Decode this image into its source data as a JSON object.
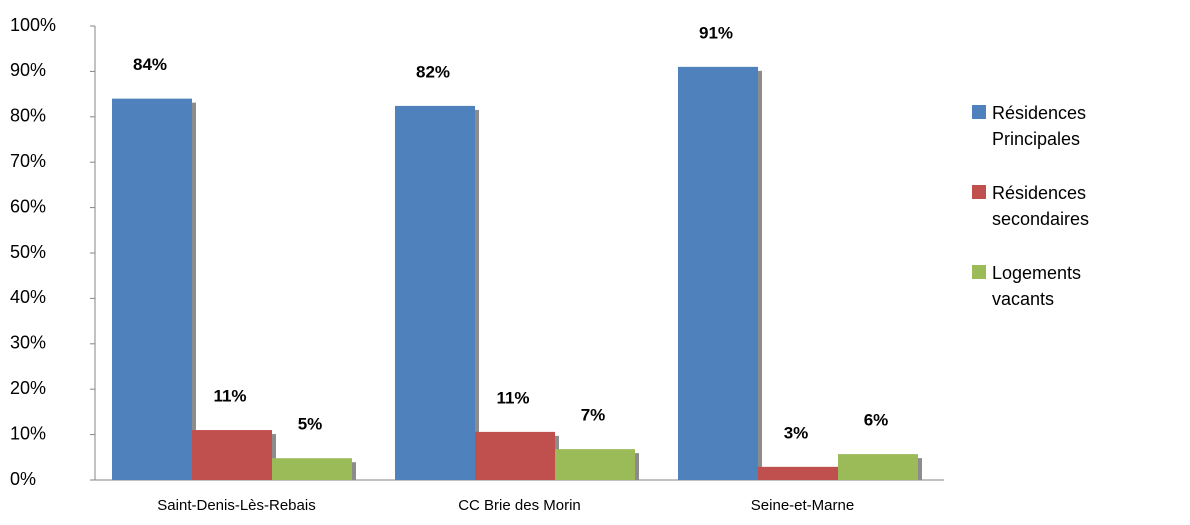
{
  "chart_data": {
    "type": "bar",
    "categories": [
      "Saint-Denis-Lès-Rebais",
      "CC Brie des Morin",
      "Seine-et-Marne"
    ],
    "series": [
      {
        "name": "Résidences Principales",
        "color": "#4f81bd",
        "values": [
          84,
          82.4,
          91
        ],
        "value_labels": [
          "84%",
          "82%",
          "91%"
        ]
      },
      {
        "name": "Résidences secondaires",
        "color": "#c0504d",
        "values": [
          11,
          10.6,
          2.9
        ],
        "value_labels": [
          "11%",
          "11%",
          "3%"
        ]
      },
      {
        "name": "Logements vacants",
        "color": "#9bbb59",
        "values": [
          4.8,
          6.8,
          5.7
        ],
        "value_labels": [
          "5%",
          "7%",
          "6%"
        ]
      }
    ],
    "ylim": [
      0,
      100
    ],
    "yticks": [
      {
        "value": 0,
        "label": "0%"
      },
      {
        "value": 10,
        "label": "10%"
      },
      {
        "value": 20,
        "label": "20%"
      },
      {
        "value": 30,
        "label": "30%"
      },
      {
        "value": 40,
        "label": "40%"
      },
      {
        "value": 50,
        "label": "50%"
      },
      {
        "value": 60,
        "label": "60%"
      },
      {
        "value": 70,
        "label": "70%"
      },
      {
        "value": 80,
        "label": "80%"
      },
      {
        "value": 90,
        "label": "90%"
      },
      {
        "value": 100,
        "label": "100%"
      }
    ],
    "legend": "right"
  }
}
